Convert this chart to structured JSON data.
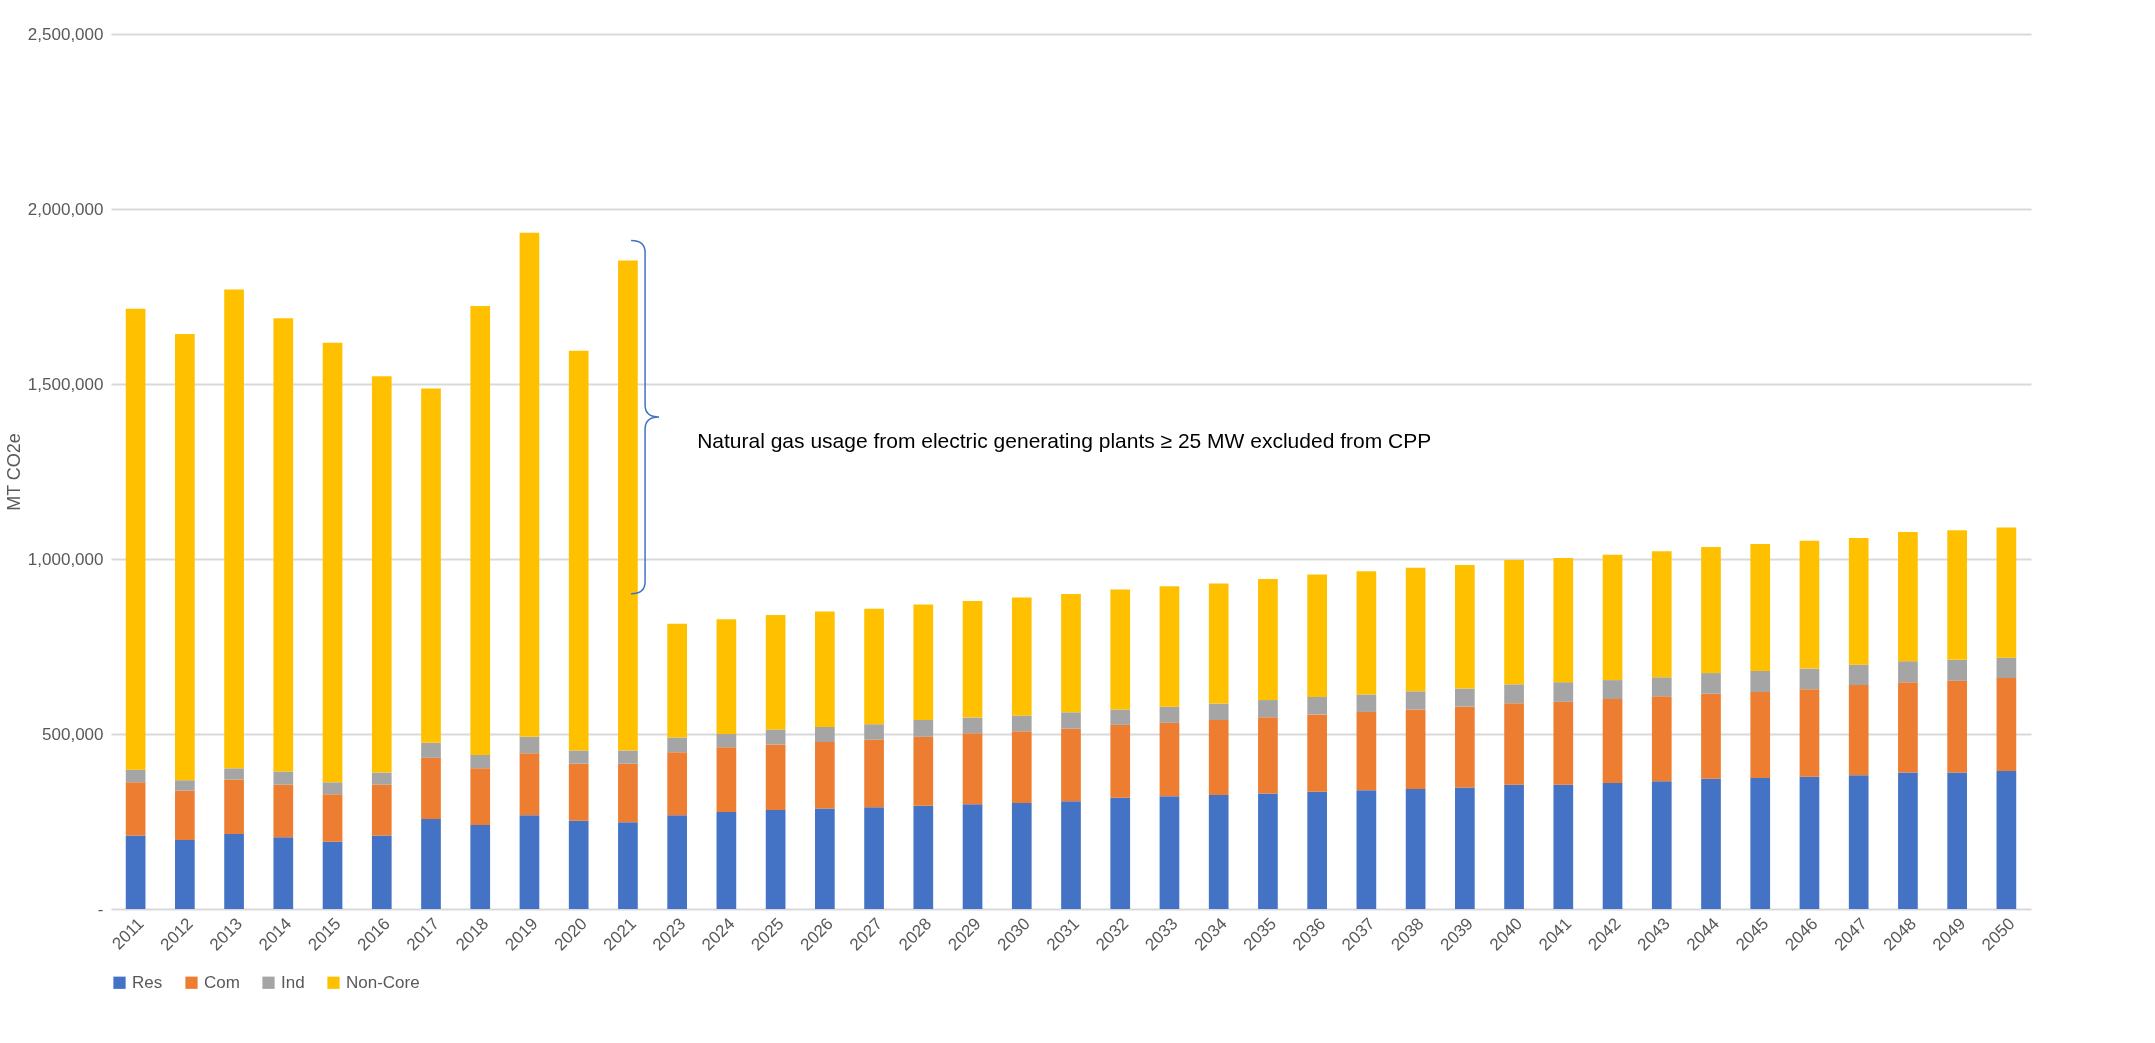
{
  "chart_data": {
    "type": "bar",
    "stacked": true,
    "ylabel": "MT CO2e",
    "categories": [
      "2011",
      "2012",
      "2013",
      "2014",
      "2015",
      "2016",
      "2017",
      "2018",
      "2019",
      "2020",
      "2021",
      "2023",
      "2024",
      "2025",
      "2026",
      "2027",
      "2028",
      "2029",
      "2030",
      "2031",
      "2032",
      "2033",
      "2034",
      "2035",
      "2036",
      "2037",
      "2038",
      "2039",
      "2040",
      "2041",
      "2042",
      "2043",
      "2044",
      "2045",
      "2046",
      "2047",
      "2048",
      "2049",
      "2050"
    ],
    "series": [
      {
        "name": "Res",
        "color": "#4472c4",
        "values": [
          210000,
          197000,
          214000,
          205000,
          192000,
          210000,
          257000,
          240000,
          268000,
          252000,
          248000,
          268000,
          277000,
          283000,
          287000,
          291000,
          295000,
          299000,
          303000,
          308000,
          318000,
          322000,
          326000,
          330000,
          335000,
          339000,
          343000,
          347000,
          355000,
          355000,
          360000,
          365000,
          372000,
          374000,
          378000,
          382000,
          390000,
          390000,
          394000
        ]
      },
      {
        "name": "Com",
        "color": "#ed7d31",
        "values": [
          152000,
          141000,
          156000,
          150000,
          136000,
          145000,
          175000,
          162000,
          177000,
          163000,
          167000,
          180000,
          185000,
          187000,
          190000,
          193000,
          197000,
          203000,
          205000,
          207000,
          208000,
          210000,
          214000,
          218000,
          221000,
          224000,
          227000,
          231000,
          233000,
          237000,
          240000,
          243000,
          243000,
          246000,
          250000,
          258000,
          258000,
          262000,
          266000
        ]
      },
      {
        "name": "Ind",
        "color": "#a5a5a5",
        "values": [
          36000,
          30000,
          32000,
          38000,
          34000,
          35000,
          43000,
          38000,
          47000,
          38000,
          38000,
          42000,
          38000,
          43000,
          43000,
          44000,
          48000,
          45000,
          45000,
          47000,
          44000,
          46000,
          47000,
          49000,
          50000,
          50000,
          52000,
          52000,
          54000,
          56000,
          54000,
          54000,
          59000,
          60000,
          59000,
          58000,
          60000,
          60000,
          58000
        ]
      },
      {
        "name": "Non-Core",
        "color": "#ffc000",
        "values": [
          1317000,
          1275000,
          1368000,
          1295000,
          1256000,
          1132000,
          1012000,
          1283000,
          1440000,
          1142000,
          1400000,
          325000,
          328000,
          327000,
          330000,
          330000,
          330000,
          333000,
          337000,
          338000,
          343000,
          344000,
          343000,
          346000,
          350000,
          352000,
          353000,
          353000,
          355000,
          355000,
          358000,
          360000,
          360000,
          363000,
          365000,
          362000,
          369000,
          370000,
          372000
        ]
      }
    ],
    "ylim": [
      0,
      2500000
    ],
    "yticks": [
      {
        "value": 0,
        "label": "-"
      },
      {
        "value": 500000,
        "label": "500,000"
      },
      {
        "value": 1000000,
        "label": "1,000,000"
      },
      {
        "value": 1500000,
        "label": "1,500,000"
      },
      {
        "value": 2000000,
        "label": "2,000,000"
      },
      {
        "value": 2500000,
        "label": "2,500,000"
      }
    ],
    "grid": "y",
    "legend": "bottom",
    "annotations": [
      "Natural gas usage from electric generating plants ≥ 25 MW excluded from CPP"
    ]
  }
}
